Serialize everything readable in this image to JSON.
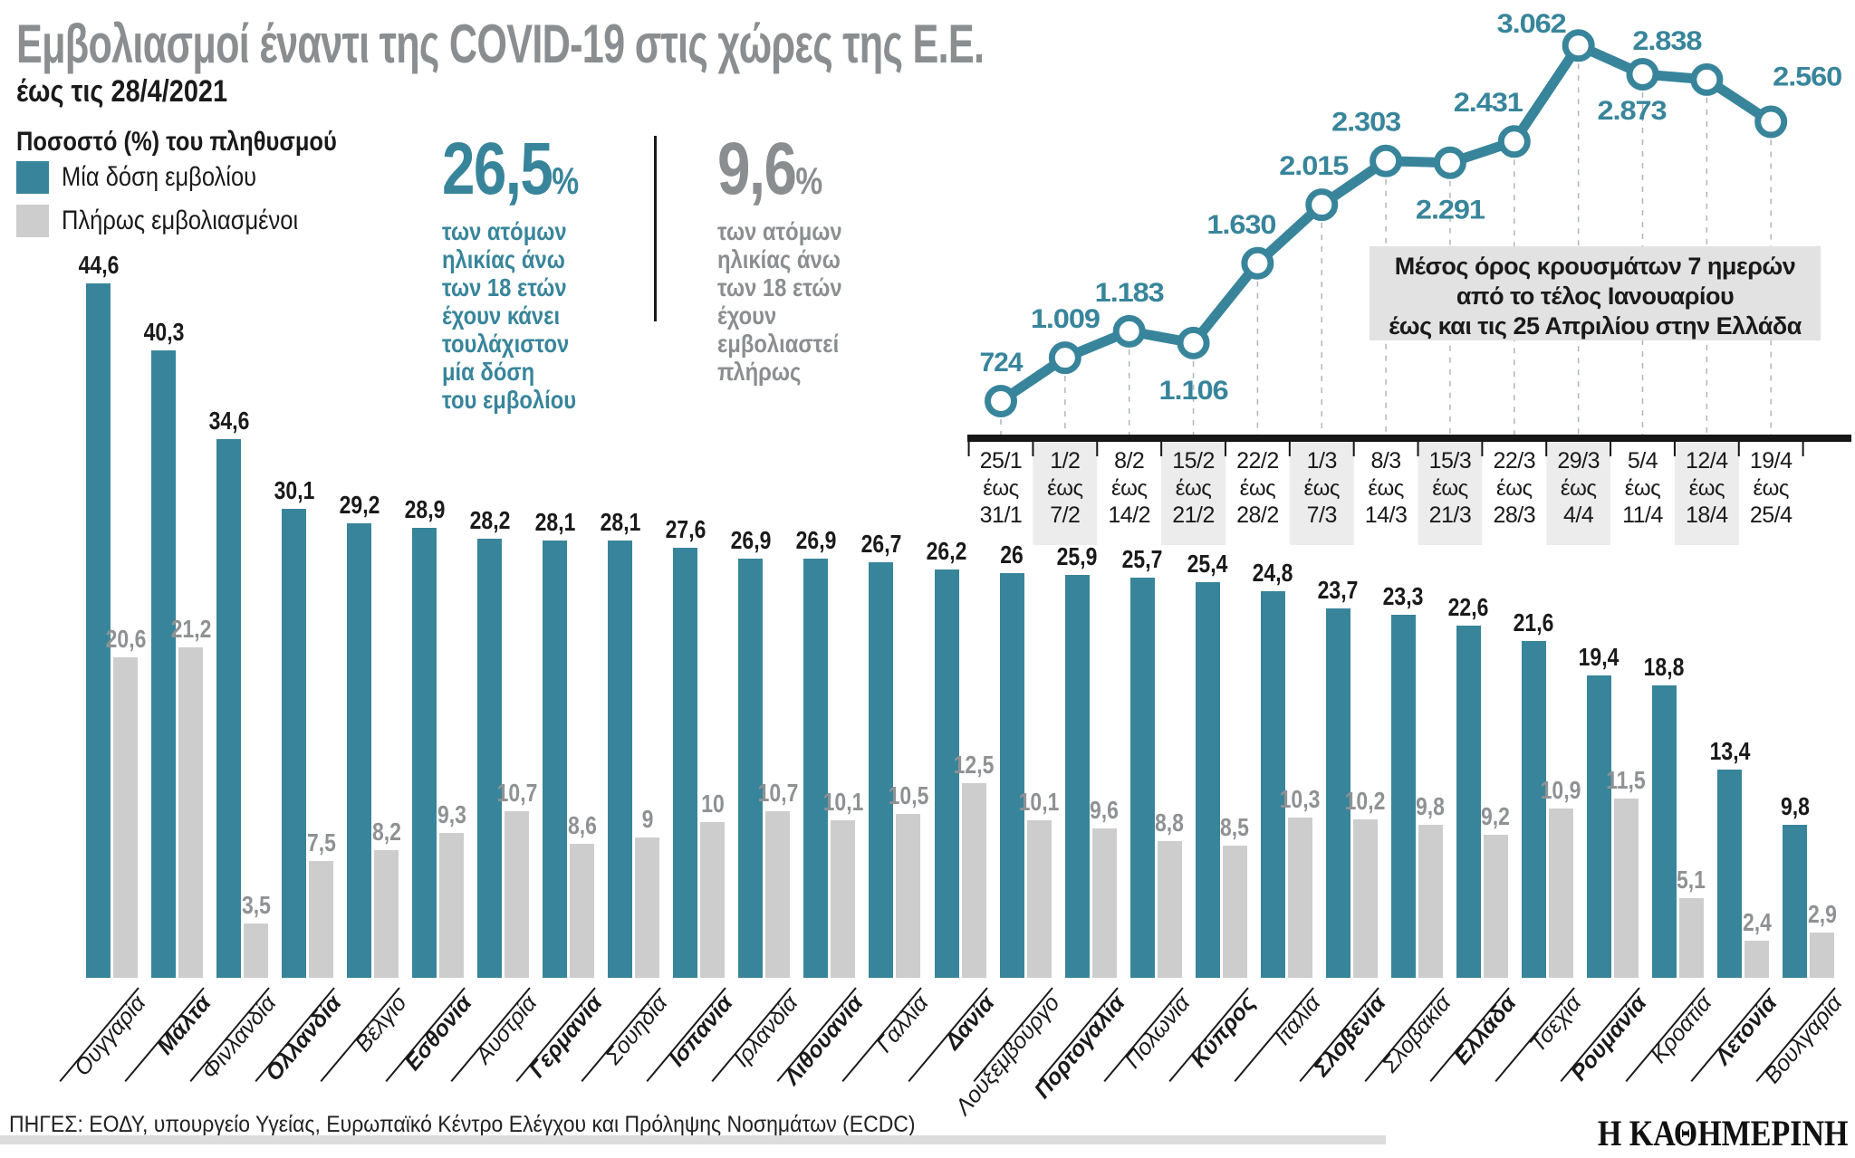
{
  "header": {
    "title": "Εμβολιασμοί έναντι της COVID-19 στις χώρες της Ε.Ε.",
    "subtitle": "έως τις 28/4/2021"
  },
  "legend": {
    "title": "Ποσοστό (%) του πληθυσμού",
    "items": [
      {
        "label": "Μία δόση εμβολίου",
        "color": "#38859b"
      },
      {
        "label": "Πλήρως εμβολιασμένοι",
        "color": "#cdcdcd"
      }
    ]
  },
  "stats": [
    {
      "value": "26,5",
      "unit": "%",
      "color": "#38859b",
      "lines": [
        "των ατόμων",
        "ηλικίας άνω",
        "των 18 ετών",
        "έχουν κάνει",
        "τουλάχιστον",
        "μία δόση",
        "του εμβολίου"
      ]
    },
    {
      "value": "9,6",
      "unit": "%",
      "color": "#8b8e90",
      "lines": [
        "των ατόμων",
        "ηλικίας άνω",
        "των 18 ετών",
        "έχουν",
        "εμβολιαστεί",
        "πλήρως"
      ]
    }
  ],
  "colors": {
    "teal": "#38859b",
    "gray_bar": "#cdcdcd",
    "gray_text": "#8f9294",
    "black": "#1a1a1a",
    "axis": "#161616",
    "grid_dash": "#b0b5b8",
    "tick_bg": "#ececec",
    "annotation_bg": "#e2e2e2"
  },
  "chart_data": [
    {
      "type": "bar",
      "title": "Εμβολιασμοί έναντι της COVID-19 στις χώρες της Ε.Ε.",
      "ylabel": "Ποσοστό (%) του πληθυσμού",
      "series": [
        {
          "name": "Μία δόση εμβολίου"
        },
        {
          "name": "Πλήρως εμβολιασμένοι"
        }
      ],
      "countries": [
        {
          "name": "Ουγγαρία",
          "dose1": 44.6,
          "dose1_label": "44,6",
          "full": 20.6,
          "full_label": "20,6",
          "bold": false
        },
        {
          "name": "Μάλτα",
          "dose1": 40.3,
          "dose1_label": "40,3",
          "full": 21.2,
          "full_label": "21,2",
          "bold": true
        },
        {
          "name": "Φινλανδία",
          "dose1": 34.6,
          "dose1_label": "34,6",
          "full": 3.5,
          "full_label": "3,5",
          "bold": false
        },
        {
          "name": "Ολλανδία",
          "dose1": 30.1,
          "dose1_label": "30,1",
          "full": 7.5,
          "full_label": "7,5",
          "bold": true
        },
        {
          "name": "Βέλγιο",
          "dose1": 29.2,
          "dose1_label": "29,2",
          "full": 8.2,
          "full_label": "8,2",
          "bold": false
        },
        {
          "name": "Εσθονία",
          "dose1": 28.9,
          "dose1_label": "28,9",
          "full": 9.3,
          "full_label": "9,3",
          "bold": true
        },
        {
          "name": "Αυστρία",
          "dose1": 28.2,
          "dose1_label": "28,2",
          "full": 10.7,
          "full_label": "10,7",
          "bold": false
        },
        {
          "name": "Γερμανία",
          "dose1": 28.1,
          "dose1_label": "28,1",
          "full": 8.6,
          "full_label": "8,6",
          "bold": true
        },
        {
          "name": "Σουηδία",
          "dose1": 28.1,
          "dose1_label": "28,1",
          "full": 9,
          "full_label": "9",
          "bold": false
        },
        {
          "name": "Ισπανία",
          "dose1": 27.6,
          "dose1_label": "27,6",
          "full": 10,
          "full_label": "10",
          "bold": true
        },
        {
          "name": "Ιρλανδία",
          "dose1": 26.9,
          "dose1_label": "26,9",
          "full": 10.7,
          "full_label": "10,7",
          "bold": false
        },
        {
          "name": "Λιθουανία",
          "dose1": 26.9,
          "dose1_label": "26,9",
          "full": 10.1,
          "full_label": "10,1",
          "bold": true
        },
        {
          "name": "Γαλλία",
          "dose1": 26.7,
          "dose1_label": "26,7",
          "full": 10.5,
          "full_label": "10,5",
          "bold": false
        },
        {
          "name": "Δανία",
          "dose1": 26.2,
          "dose1_label": "26,2",
          "full": 12.5,
          "full_label": "12,5",
          "bold": true
        },
        {
          "name": "Λουξεμβούργο",
          "dose1": 26,
          "dose1_label": "26",
          "full": 10.1,
          "full_label": "10,1",
          "bold": false
        },
        {
          "name": "Πορτογαλία",
          "dose1": 25.9,
          "dose1_label": "25,9",
          "full": 9.6,
          "full_label": "9,6",
          "bold": true
        },
        {
          "name": "Πολωνία",
          "dose1": 25.7,
          "dose1_label": "25,7",
          "full": 8.8,
          "full_label": "8,8",
          "bold": false
        },
        {
          "name": "Κύπρος",
          "dose1": 25.4,
          "dose1_label": "25,4",
          "full": 8.5,
          "full_label": "8,5",
          "bold": true
        },
        {
          "name": "Ιταλία",
          "dose1": 24.8,
          "dose1_label": "24,8",
          "full": 10.3,
          "full_label": "10,3",
          "bold": false
        },
        {
          "name": "Σλοβενία",
          "dose1": 23.7,
          "dose1_label": "23,7",
          "full": 10.2,
          "full_label": "10,2",
          "bold": true
        },
        {
          "name": "Σλοβακία",
          "dose1": 23.3,
          "dose1_label": "23,3",
          "full": 9.8,
          "full_label": "9,8",
          "bold": false
        },
        {
          "name": "Ελλάδα",
          "dose1": 22.6,
          "dose1_label": "22,6",
          "full": 9.2,
          "full_label": "9,2",
          "bold": true
        },
        {
          "name": "Τσεχία",
          "dose1": 21.6,
          "dose1_label": "21,6",
          "full": 10.9,
          "full_label": "10,9",
          "bold": false
        },
        {
          "name": "Ρουμανία",
          "dose1": 19.4,
          "dose1_label": "19,4",
          "full": 11.5,
          "full_label": "11,5",
          "bold": true
        },
        {
          "name": "Κροατία",
          "dose1": 18.8,
          "dose1_label": "18,8",
          "full": 5.1,
          "full_label": "5,1",
          "bold": false
        },
        {
          "name": "Λετονία",
          "dose1": 13.4,
          "dose1_label": "13,4",
          "full": 2.4,
          "full_label": "2,4",
          "bold": true
        },
        {
          "name": "Βουλγαρία",
          "dose1": 9.8,
          "dose1_label": "9,8",
          "full": 2.9,
          "full_label": "2,9",
          "bold": false
        }
      ]
    },
    {
      "type": "line",
      "annotation": [
        "Μέσος όρος κρουσμάτων 7 ημερών",
        "από το τέλος Ιανουαρίου",
        "έως και τις 25 Απριλίου στην Ελλάδα"
      ],
      "separator_word": "έως",
      "points": [
        {
          "value": 724,
          "label": "724",
          "from": "25/1",
          "to": "31/1",
          "shaded": false,
          "label_pos": "above"
        },
        {
          "value": 1009,
          "label": "1.009",
          "from": "1/2",
          "to": "7/2",
          "shaded": true,
          "label_pos": "above"
        },
        {
          "value": 1183,
          "label": "1.183",
          "from": "8/2",
          "to": "14/2",
          "shaded": false,
          "label_pos": "above"
        },
        {
          "value": 1106,
          "label": "1.106",
          "from": "15/2",
          "to": "21/2",
          "shaded": true,
          "label_pos": "below"
        },
        {
          "value": 1630,
          "label": "1.630",
          "from": "22/2",
          "to": "28/2",
          "shaded": false,
          "label_pos": "above"
        },
        {
          "value": 2015,
          "label": "2.015",
          "from": "1/3",
          "to": "7/3",
          "shaded": true,
          "label_pos": "above"
        },
        {
          "value": 2303,
          "label": "2.303",
          "from": "8/3",
          "to": "14/3",
          "shaded": false,
          "label_pos": "above"
        },
        {
          "value": 2291,
          "label": "2.291",
          "from": "15/3",
          "to": "21/3",
          "shaded": true,
          "label_pos": "below"
        },
        {
          "value": 2431,
          "label": "2.431",
          "from": "22/3",
          "to": "28/3",
          "shaded": false,
          "label_pos": "above"
        },
        {
          "value": 3062,
          "label": "3.062",
          "from": "29/3",
          "to": "4/4",
          "shaded": true,
          "label_pos": "above"
        },
        {
          "value": 2873,
          "label": "2.873",
          "from": "5/4",
          "to": "11/4",
          "shaded": false,
          "label_pos": "below"
        },
        {
          "value": 2838,
          "label": "2.838",
          "from": "12/4",
          "to": "18/4",
          "shaded": true,
          "label_pos": "above"
        },
        {
          "value": 2560,
          "label": "2.560",
          "from": "19/4",
          "to": "25/4",
          "shaded": false,
          "label_pos": "above"
        }
      ]
    }
  ],
  "footer": {
    "sources": "ΠΗΓΕΣ: ΕΟΔΥ, υπουργείο Υγείας, Ευρωπαϊκό Κέντρο Ελέγχου και Πρόληψης Νοσημάτων (ECDC)",
    "brand": "Η ΚΑΘΗΜΕΡΙΝΗ"
  }
}
